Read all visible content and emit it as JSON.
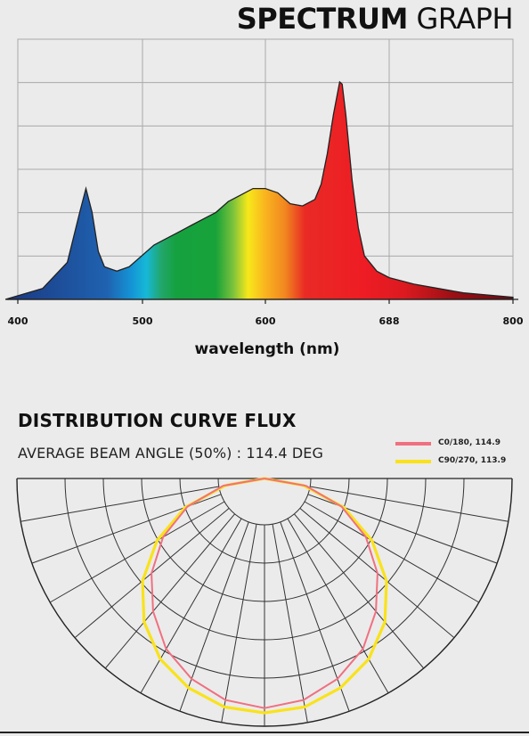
{
  "spectrum": {
    "title_bold": "SPECTRUM",
    "title_light": "GRAPH"
  },
  "flux": {
    "title": "DISTRIBUTION CURVE FLUX",
    "beam_text": "AVERAGE BEAM ANGLE  (50%) : 114.4 DEG"
  },
  "chart_data": [
    {
      "type": "area",
      "xlabel": "wavelength (nm)",
      "ylabel": "",
      "xlim": [
        400,
        800
      ],
      "ylim": [
        0,
        1
      ],
      "grid": true,
      "tick_labels": [
        "400",
        "500",
        "600",
        "688",
        "800"
      ],
      "x": [
        390,
        420,
        440,
        450,
        455,
        460,
        465,
        470,
        480,
        490,
        500,
        510,
        520,
        530,
        540,
        550,
        560,
        570,
        580,
        590,
        600,
        610,
        620,
        630,
        640,
        645,
        650,
        655,
        660,
        662,
        665,
        670,
        675,
        680,
        690,
        700,
        720,
        740,
        760,
        780,
        800
      ],
      "y": [
        0.0,
        0.05,
        0.17,
        0.4,
        0.51,
        0.4,
        0.22,
        0.15,
        0.13,
        0.15,
        0.2,
        0.25,
        0.28,
        0.31,
        0.34,
        0.37,
        0.4,
        0.45,
        0.48,
        0.51,
        0.51,
        0.49,
        0.44,
        0.43,
        0.46,
        0.53,
        0.67,
        0.85,
        1.0,
        0.99,
        0.85,
        0.55,
        0.33,
        0.2,
        0.13,
        0.1,
        0.07,
        0.05,
        0.03,
        0.02,
        0.01
      ],
      "colors": {
        "blue": "#1c4f9a",
        "cyan": "#16a4dc",
        "green": "#16a34a",
        "yellow": "#fbeb14",
        "orange": "#f2901c",
        "red": "#ec1c24",
        "darkred": "#8c0c10"
      }
    },
    {
      "type": "polar",
      "grid": true,
      "series": [
        {
          "name": "C0/180, 114.9",
          "color": "#f07080",
          "angles": [
            -90,
            -80,
            -70,
            -60,
            -50,
            -40,
            -30,
            -20,
            -10,
            0,
            10,
            20,
            30,
            40,
            50,
            60,
            70,
            80,
            90
          ],
          "values": [
            0.0,
            0.18,
            0.35,
            0.5,
            0.63,
            0.74,
            0.84,
            0.91,
            0.96,
            0.98,
            0.96,
            0.91,
            0.84,
            0.74,
            0.63,
            0.5,
            0.35,
            0.18,
            0.0
          ]
        },
        {
          "name": "C90/270, 113.9",
          "color": "#f9e21b",
          "angles": [
            -90,
            -80,
            -70,
            -60,
            -50,
            -40,
            -30,
            -20,
            -10,
            0,
            10,
            20,
            30,
            40,
            50,
            60,
            70,
            80,
            90
          ],
          "values": [
            0.0,
            0.17,
            0.36,
            0.53,
            0.68,
            0.8,
            0.89,
            0.95,
            0.99,
            1.0,
            0.99,
            0.95,
            0.89,
            0.8,
            0.68,
            0.53,
            0.36,
            0.17,
            0.0
          ]
        }
      ]
    }
  ]
}
